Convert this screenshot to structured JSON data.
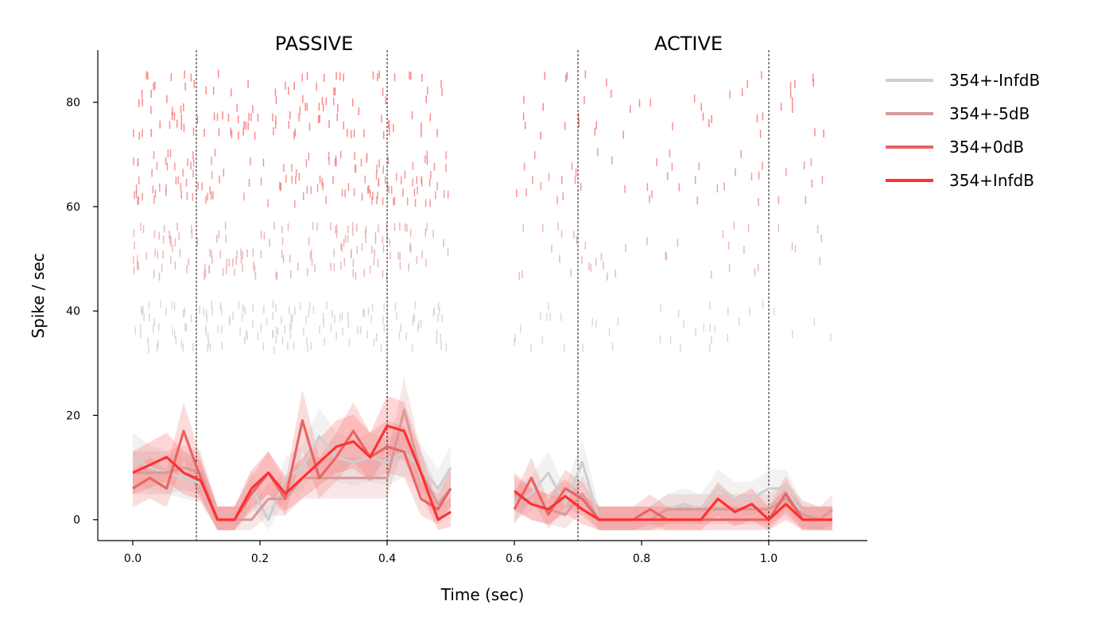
{
  "chart_data": {
    "type": "line",
    "xlabel": "Time (sec)",
    "ylabel": "Spike / sec",
    "xlim": [
      -0.055,
      1.155
    ],
    "ylim": [
      -4,
      90
    ],
    "xticks": [
      0.0,
      0.2,
      0.4,
      0.6,
      0.8,
      1.0
    ],
    "xtick_labels": [
      "0.0",
      "0.2",
      "0.4",
      "0.6",
      "0.8",
      "1.0"
    ],
    "yticks": [
      0,
      20,
      40,
      60,
      80
    ],
    "ytick_labels": [
      "0",
      "20",
      "40",
      "60",
      "80"
    ],
    "panel_titles": [
      {
        "text": "PASSIVE",
        "x": 0.285
      },
      {
        "text": "ACTIVE",
        "x": 0.875
      }
    ],
    "vlines": [
      0.1,
      0.4,
      0.7,
      1.0
    ],
    "legend_position": "top-right (outside plot)",
    "grid": false,
    "series": [
      {
        "name": "354+-InfdB",
        "color": "#cfcfcf",
        "band_color": "#d0d0d0",
        "raster_band": [
          33,
          41
        ],
        "segments": [
          {
            "x": [
              0.0,
              0.0267,
              0.0533,
              0.08,
              0.1067,
              0.1333,
              0.16,
              0.1867,
              0.2133,
              0.24,
              0.2667,
              0.2933,
              0.32,
              0.3467,
              0.3733,
              0.4,
              0.4267,
              0.4533,
              0.48,
              0.5
            ],
            "y": [
              12,
              10,
              9,
              8,
              7,
              0,
              0,
              6,
              0,
              8,
              10,
              16,
              12,
              11,
              12,
              11,
              13,
              10,
              6,
              10
            ]
          },
          {
            "x": [
              0.6,
              0.6267,
              0.6533,
              0.68,
              0.7067,
              0.7333,
              0.76,
              0.7867,
              0.8133,
              0.84,
              0.8667,
              0.8933,
              0.92,
              0.9467,
              0.9733,
              1.0,
              1.0267,
              1.0533,
              1.08,
              1.1
            ],
            "y": [
              3,
              5,
              9,
              3,
              11,
              0,
              0,
              0,
              0,
              2,
              3,
              2,
              6,
              4,
              4,
              6,
              6,
              1,
              0,
              0
            ]
          }
        ]
      },
      {
        "name": "354+-5dB",
        "color": "#d99a9a",
        "band_color": "#e6a8a8",
        "raster_band": [
          47,
          56
        ],
        "segments": [
          {
            "x": [
              0.0,
              0.0267,
              0.0533,
              0.08,
              0.1067,
              0.1333,
              0.16,
              0.1867,
              0.2133,
              0.24,
              0.2667,
              0.2933,
              0.32,
              0.3467,
              0.3733,
              0.4,
              0.4267,
              0.4533,
              0.48,
              0.5
            ],
            "y": [
              9,
              9,
              9,
              10,
              9,
              0,
              0,
              0,
              4,
              4,
              8,
              8,
              8,
              8,
              8,
              8,
              21,
              9,
              3,
              6
            ]
          },
          {
            "x": [
              0.6,
              0.6267,
              0.6533,
              0.68,
              0.7067,
              0.7333,
              0.76,
              0.7867,
              0.8133,
              0.84,
              0.8667,
              0.8933,
              0.92,
              0.9467,
              0.9733,
              1.0,
              1.0267,
              1.0533,
              1.08,
              1.1
            ],
            "y": [
              5,
              3,
              2,
              1,
              5,
              0,
              0,
              0,
              0,
              2,
              2,
              2,
              2,
              2,
              2,
              2,
              4,
              1,
              0,
              2
            ]
          }
        ]
      },
      {
        "name": "354+0dB",
        "color": "#ea6464",
        "band_color": "#f08080",
        "raster_band": [
          61,
          70
        ],
        "segments": [
          {
            "x": [
              0.0,
              0.0267,
              0.0533,
              0.08,
              0.1067,
              0.1333,
              0.16,
              0.1867,
              0.2133,
              0.24,
              0.2667,
              0.2933,
              0.32,
              0.3467,
              0.3733,
              0.4,
              0.4267,
              0.4533,
              0.48,
              0.5
            ],
            "y": [
              6,
              8,
              6,
              17,
              8,
              0,
              0,
              5,
              9,
              4,
              19,
              8,
              12,
              17,
              12,
              14,
              13,
              4,
              2,
              6
            ]
          },
          {
            "x": [
              0.6,
              0.6267,
              0.6533,
              0.68,
              0.7067,
              0.7333,
              0.76,
              0.7867,
              0.8133,
              0.84,
              0.8667,
              0.8933,
              0.92,
              0.9467,
              0.9733,
              1.0,
              1.0267,
              1.0533,
              1.08,
              1.1
            ],
            "y": [
              2,
              8,
              1,
              6,
              4,
              0,
              0,
              0,
              2,
              0,
              0,
              0,
              0,
              0,
              0,
              0,
              5,
              0,
              0,
              0
            ]
          }
        ]
      },
      {
        "name": "354+InfdB",
        "color": "#ff3131",
        "band_color": "#ff6b6b",
        "raster_band": [
          74,
          85
        ],
        "segments": [
          {
            "x": [
              0.0,
              0.0267,
              0.0533,
              0.08,
              0.1067,
              0.1333,
              0.16,
              0.1867,
              0.2133,
              0.24,
              0.2667,
              0.2933,
              0.32,
              0.3467,
              0.3733,
              0.4,
              0.4267,
              0.4533,
              0.48,
              0.5
            ],
            "y": [
              9,
              10.5,
              12,
              9,
              7.5,
              0,
              0,
              6,
              9,
              5,
              8,
              11,
              14,
              15,
              12,
              18,
              17,
              9,
              0,
              1.5
            ]
          },
          {
            "x": [
              0.6,
              0.6267,
              0.6533,
              0.68,
              0.7067,
              0.7333,
              0.76,
              0.7867,
              0.8133,
              0.84,
              0.8667,
              0.8933,
              0.92,
              0.9467,
              0.9733,
              1.0,
              1.0267,
              1.0533,
              1.08,
              1.1
            ],
            "y": [
              5.5,
              3,
              2,
              4.5,
              2,
              0,
              0,
              0,
              0,
              0,
              0,
              0,
              4,
              1.5,
              3,
              0,
              3,
              0,
              0,
              0
            ]
          }
        ]
      }
    ]
  }
}
